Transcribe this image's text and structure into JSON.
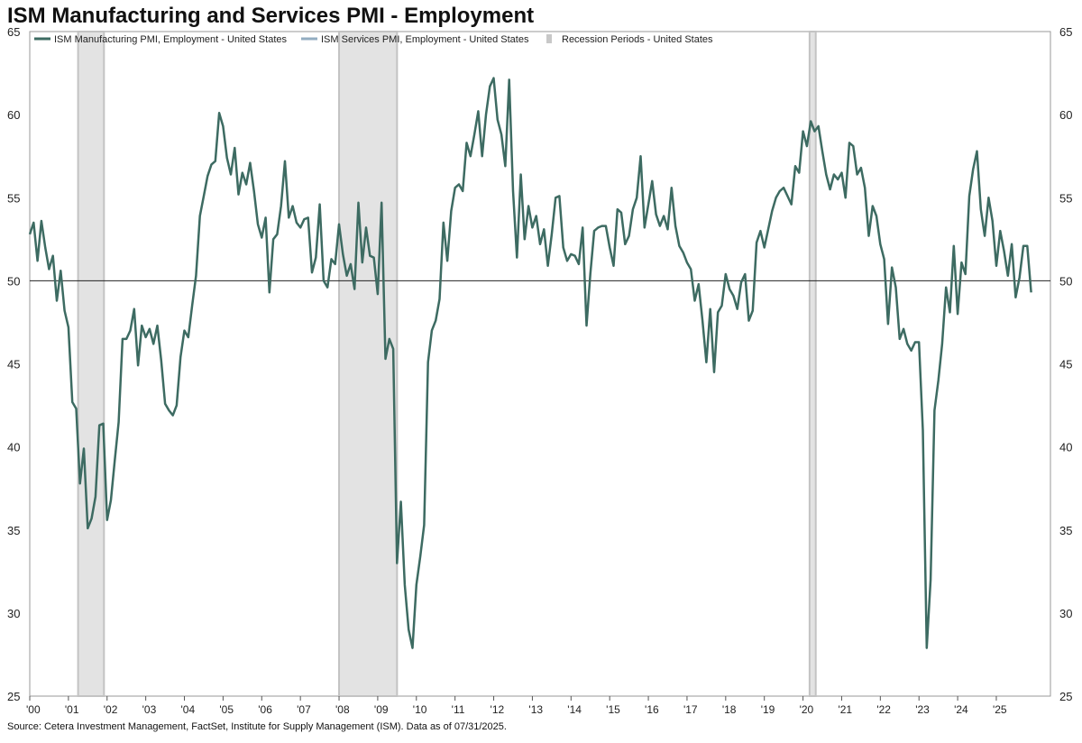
{
  "chart_data": {
    "type": "line",
    "title": "ISM Manufacturing and Services PMI - Employment",
    "source": "Source: Cetera Investment Management, FactSet, Institute for Supply Management (ISM). Data as of 07/31/2025.",
    "ylim": [
      25,
      65
    ],
    "yticks": [
      25,
      30,
      35,
      40,
      45,
      50,
      55,
      60,
      65
    ],
    "xlim": [
      2000.0,
      2026.4
    ],
    "reference_line": 50,
    "x_tick_labels": [
      {
        "x": 2000.0,
        "label": "'00"
      },
      {
        "x": 2001.0,
        "label": "'01"
      },
      {
        "x": 2002.0,
        "label": "'02"
      },
      {
        "x": 2003.0,
        "label": "'03"
      },
      {
        "x": 2004.0,
        "label": "'04"
      },
      {
        "x": 2005.0,
        "label": "'05"
      },
      {
        "x": 2006.0,
        "label": "'06"
      },
      {
        "x": 2007.0,
        "label": "'07"
      },
      {
        "x": 2008.0,
        "label": "'08"
      },
      {
        "x": 2009.0,
        "label": "'09"
      },
      {
        "x": 2010.0,
        "label": "'10"
      },
      {
        "x": 2011.0,
        "label": "'11"
      },
      {
        "x": 2012.0,
        "label": "'12"
      },
      {
        "x": 2013.0,
        "label": "'13"
      },
      {
        "x": 2014.0,
        "label": "'14"
      },
      {
        "x": 2015.0,
        "label": "'15"
      },
      {
        "x": 2016.0,
        "label": "'16"
      },
      {
        "x": 2017.0,
        "label": "'17"
      },
      {
        "x": 2018.0,
        "label": "'18"
      },
      {
        "x": 2019.0,
        "label": "'19"
      },
      {
        "x": 2020.0,
        "label": "'20"
      },
      {
        "x": 2021.0,
        "label": "'21"
      },
      {
        "x": 2022.0,
        "label": "'22"
      },
      {
        "x": 2023.0,
        "label": "'23"
      },
      {
        "x": 2024.0,
        "label": "'24"
      },
      {
        "x": 2025.0,
        "label": "'25"
      }
    ],
    "recessions": [
      {
        "start": 2001.25,
        "end": 2001.92
      },
      {
        "start": 2008.0,
        "end": 2009.5
      },
      {
        "start": 2020.17,
        "end": 2020.33
      }
    ],
    "series": [
      {
        "name": "ISM Manufacturing PMI, Employment - United States",
        "color": "#3d6b62",
        "points": [
          [
            2000.0,
            52.8
          ],
          [
            2000.1,
            53.5
          ],
          [
            2000.2,
            51.2
          ],
          [
            2000.3,
            53.6
          ],
          [
            2000.4,
            52.0
          ],
          [
            2000.5,
            50.7
          ],
          [
            2000.6,
            51.5
          ],
          [
            2000.7,
            48.8
          ],
          [
            2000.8,
            50.6
          ],
          [
            2000.9,
            48.2
          ],
          [
            2001.0,
            47.2
          ],
          [
            2001.1,
            42.7
          ],
          [
            2001.2,
            42.3
          ],
          [
            2001.3,
            37.8
          ],
          [
            2001.4,
            39.9
          ],
          [
            2001.5,
            35.1
          ],
          [
            2001.6,
            35.7
          ],
          [
            2001.7,
            37.0
          ],
          [
            2001.8,
            41.3
          ],
          [
            2001.9,
            41.4
          ],
          [
            2002.0,
            35.6
          ],
          [
            2002.1,
            36.8
          ],
          [
            2002.2,
            39.2
          ],
          [
            2002.3,
            41.5
          ],
          [
            2002.4,
            46.5
          ],
          [
            2002.5,
            46.5
          ],
          [
            2002.6,
            47.0
          ],
          [
            2002.7,
            48.3
          ],
          [
            2002.8,
            44.9
          ],
          [
            2002.9,
            47.3
          ],
          [
            2003.0,
            46.6
          ],
          [
            2003.1,
            47.1
          ],
          [
            2003.2,
            46.2
          ],
          [
            2003.3,
            47.3
          ],
          [
            2003.4,
            45.2
          ],
          [
            2003.5,
            42.6
          ],
          [
            2003.6,
            42.2
          ],
          [
            2003.7,
            41.9
          ],
          [
            2003.8,
            42.5
          ],
          [
            2003.9,
            45.4
          ],
          [
            2004.0,
            47.0
          ],
          [
            2004.1,
            46.6
          ],
          [
            2004.2,
            48.5
          ],
          [
            2004.3,
            50.3
          ],
          [
            2004.4,
            53.9
          ],
          [
            2004.5,
            55.1
          ],
          [
            2004.6,
            56.3
          ],
          [
            2004.7,
            57.0
          ],
          [
            2004.8,
            57.2
          ],
          [
            2004.9,
            60.1
          ],
          [
            2005.0,
            59.3
          ],
          [
            2005.1,
            57.4
          ],
          [
            2005.2,
            56.4
          ],
          [
            2005.3,
            58.0
          ],
          [
            2005.4,
            55.2
          ],
          [
            2005.5,
            56.5
          ],
          [
            2005.6,
            55.8
          ],
          [
            2005.7,
            57.1
          ],
          [
            2005.8,
            55.4
          ],
          [
            2005.9,
            53.4
          ],
          [
            2006.0,
            52.6
          ],
          [
            2006.1,
            53.8
          ],
          [
            2006.2,
            49.3
          ],
          [
            2006.3,
            52.5
          ],
          [
            2006.4,
            52.8
          ],
          [
            2006.5,
            54.5
          ],
          [
            2006.6,
            57.2
          ],
          [
            2006.7,
            53.8
          ],
          [
            2006.8,
            54.5
          ],
          [
            2006.9,
            53.5
          ],
          [
            2007.0,
            53.2
          ],
          [
            2007.1,
            53.7
          ],
          [
            2007.2,
            53.8
          ],
          [
            2007.3,
            50.5
          ],
          [
            2007.4,
            51.4
          ],
          [
            2007.5,
            54.6
          ],
          [
            2007.6,
            50.0
          ],
          [
            2007.7,
            49.6
          ],
          [
            2007.8,
            51.3
          ],
          [
            2007.9,
            51.0
          ],
          [
            2008.0,
            53.4
          ],
          [
            2008.1,
            51.6
          ],
          [
            2008.2,
            50.3
          ],
          [
            2008.3,
            51.0
          ],
          [
            2008.4,
            49.5
          ],
          [
            2008.5,
            54.7
          ],
          [
            2008.6,
            51.1
          ],
          [
            2008.7,
            53.2
          ],
          [
            2008.8,
            51.5
          ],
          [
            2008.9,
            51.4
          ],
          [
            2009.0,
            49.2
          ],
          [
            2009.1,
            54.7
          ],
          [
            2009.2,
            45.3
          ],
          [
            2009.3,
            46.5
          ],
          [
            2009.4,
            45.9
          ],
          [
            2009.5,
            33.0
          ],
          [
            2009.6,
            36.7
          ],
          [
            2009.7,
            31.7
          ],
          [
            2009.8,
            29.0
          ],
          [
            2009.9,
            27.9
          ],
          [
            2010.0,
            31.7
          ],
          [
            2010.1,
            33.4
          ],
          [
            2010.2,
            35.3
          ],
          [
            2010.3,
            45.1
          ],
          [
            2010.4,
            47.0
          ],
          [
            2010.5,
            47.6
          ],
          [
            2010.6,
            48.9
          ],
          [
            2010.7,
            53.5
          ],
          [
            2010.8,
            51.2
          ],
          [
            2010.9,
            54.2
          ],
          [
            2011.0,
            55.6
          ],
          [
            2011.1,
            55.8
          ],
          [
            2011.2,
            55.4
          ],
          [
            2011.3,
            58.3
          ],
          [
            2011.4,
            57.5
          ],
          [
            2011.5,
            58.8
          ],
          [
            2011.6,
            60.2
          ],
          [
            2011.7,
            57.5
          ],
          [
            2011.8,
            60.0
          ],
          [
            2011.9,
            61.7
          ],
          [
            2012.0,
            62.2
          ],
          [
            2012.1,
            59.7
          ],
          [
            2012.2,
            58.8
          ],
          [
            2012.3,
            56.9
          ],
          [
            2012.4,
            62.1
          ],
          [
            2012.5,
            55.4
          ],
          [
            2012.6,
            51.4
          ],
          [
            2012.7,
            56.4
          ],
          [
            2012.8,
            52.5
          ],
          [
            2012.9,
            54.5
          ],
          [
            2013.0,
            53.2
          ],
          [
            2013.1,
            53.9
          ],
          [
            2013.2,
            52.2
          ],
          [
            2013.3,
            53.1
          ],
          [
            2013.4,
            50.9
          ],
          [
            2013.5,
            52.8
          ],
          [
            2013.6,
            55.0
          ],
          [
            2013.7,
            55.1
          ],
          [
            2013.8,
            52.0
          ],
          [
            2013.9,
            51.2
          ],
          [
            2014.0,
            51.6
          ],
          [
            2014.1,
            51.5
          ],
          [
            2014.2,
            51.0
          ],
          [
            2014.3,
            53.2
          ],
          [
            2014.4,
            47.3
          ],
          [
            2014.5,
            50.4
          ],
          [
            2014.6,
            53.0
          ],
          [
            2014.7,
            53.2
          ],
          [
            2014.8,
            53.3
          ],
          [
            2014.9,
            53.3
          ],
          [
            2015.0,
            52.0
          ],
          [
            2015.1,
            50.9
          ],
          [
            2015.2,
            54.3
          ],
          [
            2015.3,
            54.1
          ],
          [
            2015.4,
            52.2
          ],
          [
            2015.5,
            52.7
          ],
          [
            2015.6,
            54.3
          ],
          [
            2015.7,
            55.0
          ],
          [
            2015.8,
            57.5
          ],
          [
            2015.9,
            53.2
          ],
          [
            2016.0,
            54.6
          ],
          [
            2016.1,
            56.0
          ],
          [
            2016.2,
            54.0
          ],
          [
            2016.3,
            53.3
          ],
          [
            2016.4,
            53.9
          ],
          [
            2016.5,
            53.1
          ],
          [
            2016.6,
            55.6
          ],
          [
            2016.7,
            53.3
          ],
          [
            2016.8,
            52.1
          ],
          [
            2016.9,
            51.7
          ],
          [
            2017.0,
            51.1
          ],
          [
            2017.1,
            50.7
          ],
          [
            2017.2,
            48.8
          ],
          [
            2017.3,
            49.8
          ],
          [
            2017.4,
            47.6
          ],
          [
            2017.5,
            45.1
          ],
          [
            2017.6,
            48.3
          ],
          [
            2017.7,
            44.5
          ],
          [
            2017.8,
            48.1
          ],
          [
            2017.9,
            48.5
          ],
          [
            2018.0,
            50.4
          ],
          [
            2018.1,
            49.5
          ],
          [
            2018.2,
            49.1
          ],
          [
            2018.3,
            48.3
          ],
          [
            2018.4,
            49.9
          ],
          [
            2018.5,
            50.4
          ],
          [
            2018.6,
            47.6
          ],
          [
            2018.7,
            48.2
          ],
          [
            2018.8,
            52.3
          ],
          [
            2018.9,
            53.0
          ],
          [
            2019.0,
            52.0
          ],
          [
            2019.1,
            53.1
          ],
          [
            2019.2,
            54.2
          ],
          [
            2019.3,
            55.0
          ],
          [
            2019.4,
            55.4
          ],
          [
            2019.5,
            55.6
          ],
          [
            2019.6,
            55.1
          ],
          [
            2019.7,
            54.6
          ],
          [
            2019.8,
            56.9
          ],
          [
            2019.9,
            56.5
          ],
          [
            2020.0,
            59.0
          ],
          [
            2020.1,
            58.1
          ],
          [
            2020.2,
            59.6
          ],
          [
            2020.3,
            59.0
          ],
          [
            2020.4,
            59.3
          ],
          [
            2020.5,
            57.8
          ],
          [
            2020.6,
            56.4
          ],
          [
            2020.7,
            55.5
          ],
          [
            2020.8,
            56.4
          ],
          [
            2020.9,
            56.1
          ],
          [
            2021.0,
            56.5
          ],
          [
            2021.1,
            55.0
          ],
          [
            2021.2,
            58.3
          ],
          [
            2021.3,
            58.1
          ],
          [
            2021.4,
            56.4
          ],
          [
            2021.5,
            56.8
          ],
          [
            2021.6,
            55.6
          ],
          [
            2021.7,
            52.7
          ],
          [
            2021.8,
            54.5
          ],
          [
            2021.9,
            53.9
          ],
          [
            2022.0,
            52.2
          ],
          [
            2022.1,
            51.3
          ],
          [
            2022.2,
            47.4
          ],
          [
            2022.3,
            50.8
          ],
          [
            2022.4,
            49.6
          ],
          [
            2022.5,
            46.5
          ],
          [
            2022.6,
            47.1
          ],
          [
            2022.7,
            46.2
          ],
          [
            2022.8,
            45.8
          ],
          [
            2022.9,
            46.3
          ],
          [
            2023.0,
            46.3
          ],
          [
            2023.1,
            41.0
          ],
          [
            2023.2,
            27.9
          ],
          [
            2023.3,
            32.0
          ],
          [
            2023.4,
            42.2
          ],
          [
            2023.5,
            44.0
          ],
          [
            2023.6,
            46.2
          ],
          [
            2023.7,
            49.6
          ],
          [
            2023.8,
            48.1
          ],
          [
            2023.9,
            52.1
          ],
          [
            2024.0,
            48.0
          ],
          [
            2024.1,
            51.1
          ],
          [
            2024.2,
            50.4
          ],
          [
            2024.3,
            55.1
          ],
          [
            2024.4,
            56.7
          ],
          [
            2024.5,
            57.8
          ],
          [
            2024.6,
            54.3
          ],
          [
            2024.7,
            52.7
          ],
          [
            2024.8,
            55.0
          ],
          [
            2024.9,
            53.6
          ],
          [
            2025.0,
            50.9
          ],
          [
            2025.1,
            53.0
          ],
          [
            2025.2,
            51.8
          ],
          [
            2025.3,
            50.3
          ],
          [
            2025.4,
            52.2
          ],
          [
            2025.5,
            49.0
          ],
          [
            2025.6,
            50.2
          ],
          [
            2025.7,
            52.1
          ],
          [
            2025.8,
            52.1
          ],
          [
            2025.9,
            49.3
          ]
        ]
      }
    ],
    "legend": [
      {
        "label": "ISM Manufacturing PMI, Employment - United States",
        "color": "#3d6b62",
        "kind": "line"
      },
      {
        "label": "ISM Services PMI, Employment - United States",
        "color": "#93adc1",
        "kind": "line"
      },
      {
        "label": "Recession Periods - United States",
        "color": "#c8c8c8",
        "kind": "box"
      }
    ]
  }
}
